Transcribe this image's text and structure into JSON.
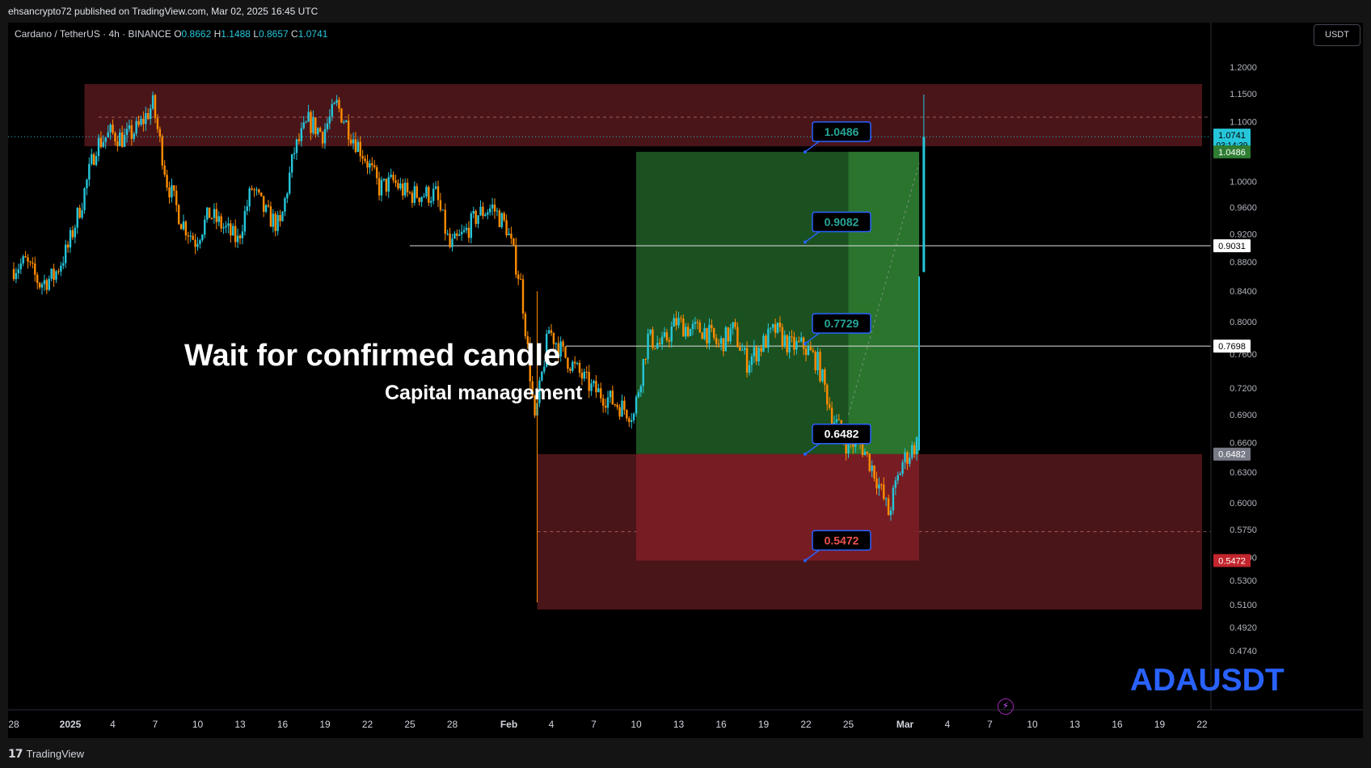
{
  "header": {
    "published_line": "ehsancrypto72 published on TradingView.com, Mar 02, 2025 16:45 UTC"
  },
  "symbol": {
    "title": "Cardano / TetherUS · 4h · BINANCE",
    "o_label": "O",
    "o_value": "0.8662",
    "h_label": "H",
    "h_value": "1.1488",
    "l_label": "L",
    "l_value": "0.8657",
    "c_label": "C",
    "c_value": "1.0741"
  },
  "currency_button": "USDT",
  "annotations": {
    "main": "Wait for confirmed candle",
    "sub": "Capital management",
    "ticker": "ADAUSDT"
  },
  "footer": {
    "brand": "TradingView"
  },
  "colors": {
    "up": "#26c6da",
    "down": "#ff8c00",
    "profit_zone": "#1e5a24",
    "loss_zone": "#7a1c24",
    "supply_zone": "#4a1518",
    "accent": "#2962ff"
  },
  "chart_data": {
    "type": "candlestick",
    "symbol": "ADAUSDT",
    "timeframe": "4h",
    "y_axis": {
      "scale": "log",
      "ticks": [
        "1.2000",
        "1.1500",
        "1.1000",
        "1.0000",
        "0.9600",
        "0.9200",
        "0.8800",
        "0.8400",
        "0.8000",
        "0.7600",
        "0.7200",
        "0.6900",
        "0.6600",
        "0.6300",
        "0.6000",
        "0.5750",
        "0.5500",
        "0.5300",
        "0.5100",
        "0.4920",
        "0.4740"
      ],
      "range": [
        0.462,
        1.25
      ]
    },
    "x_axis": {
      "ticks": [
        "28",
        "2025",
        "4",
        "7",
        "10",
        "13",
        "16",
        "19",
        "22",
        "25",
        "28",
        "Feb",
        "4",
        "7",
        "10",
        "13",
        "16",
        "19",
        "22",
        "25",
        "Mar",
        "4",
        "7",
        "10",
        "13",
        "16",
        "19",
        "22"
      ]
    },
    "price_labels": [
      {
        "text": "1.0741",
        "sub": "03:14:39",
        "value": 1.0741,
        "bg": "#26c6da",
        "fg": "#000000"
      },
      {
        "text": "1.0486",
        "value": 1.0486,
        "bg": "#2e7d32",
        "fg": "#ffffff"
      },
      {
        "text": "0.9031",
        "value": 0.9031,
        "bg": "#ffffff",
        "fg": "#000000"
      },
      {
        "text": "0.7698",
        "value": 0.7698,
        "bg": "#ffffff",
        "fg": "#000000"
      },
      {
        "text": "0.6482",
        "value": 0.6482,
        "bg": "#787b86",
        "fg": "#ffffff"
      },
      {
        "text": "0.5472",
        "value": 0.5472,
        "bg": "#c2252d",
        "fg": "#ffffff"
      }
    ],
    "horizontal_lines": [
      {
        "value": 0.9031,
        "from": "Jan 25",
        "style": "solid"
      },
      {
        "value": 0.7698,
        "from": "Feb 5",
        "style": "solid"
      }
    ],
    "zones": [
      {
        "name": "supply",
        "top": 1.168,
        "bottom": 1.058,
        "from": "Jan 2",
        "to": "Mar 22"
      },
      {
        "name": "demand",
        "top": 0.6482,
        "bottom": 0.5062,
        "from": "Feb 3",
        "to": "Mar 22"
      }
    ],
    "position": {
      "entry": 0.6482,
      "target": 1.0486,
      "stop": 0.5472,
      "from": "Feb 10",
      "to": "Mar 2"
    },
    "callouts": [
      {
        "text": "1.0486",
        "value": 1.0486,
        "color": "#26a69a"
      },
      {
        "text": "0.9082",
        "value": 0.9082,
        "color": "#26a69a"
      },
      {
        "text": "0.7729",
        "value": 0.7729,
        "color": "#26a69a"
      },
      {
        "text": "0.6482",
        "value": 0.6482,
        "color": "#ffffff"
      },
      {
        "text": "0.5472",
        "value": 0.5472,
        "color": "#ef5350"
      }
    ],
    "price_path": [
      [
        "Dec 28",
        0.87
      ],
      [
        "Dec 29",
        0.88
      ],
      [
        "Dec 30",
        0.85
      ],
      [
        "Dec 31",
        0.86
      ],
      [
        "Jan 1",
        0.9
      ],
      [
        "Jan 2",
        0.97
      ],
      [
        "Jan 3",
        1.06
      ],
      [
        "Jan 4",
        1.08
      ],
      [
        "Jan 5",
        1.07
      ],
      [
        "Jan 6",
        1.09
      ],
      [
        "Jan 7",
        1.13
      ],
      [
        "Jan 8",
        1.0
      ],
      [
        "Jan 9",
        0.94
      ],
      [
        "Jan 10",
        0.91
      ],
      [
        "Jan 11",
        0.95
      ],
      [
        "Jan 12",
        0.93
      ],
      [
        "Jan 13",
        0.91
      ],
      [
        "Jan 14",
        0.99
      ],
      [
        "Jan 15",
        0.95
      ],
      [
        "Jan 16",
        0.93
      ],
      [
        "Jan 17",
        1.05
      ],
      [
        "Jan 18",
        1.1
      ],
      [
        "Jan 19",
        1.08
      ],
      [
        "Jan 20",
        1.13
      ],
      [
        "Jan 21",
        1.08
      ],
      [
        "Jan 22",
        1.04
      ],
      [
        "Jan 23",
        0.99
      ],
      [
        "Jan 24",
        1.0
      ],
      [
        "Jan 25",
        0.98
      ],
      [
        "Jan 26",
        0.98
      ],
      [
        "Jan 27",
        0.98
      ],
      [
        "Jan 28",
        0.9
      ],
      [
        "Jan 29",
        0.92
      ],
      [
        "Jan 30",
        0.95
      ],
      [
        "Jan 31",
        0.96
      ],
      [
        "Feb 1",
        0.93
      ],
      [
        "Feb 2",
        0.85
      ],
      [
        "Feb 3",
        0.68
      ],
      [
        "Feb 4",
        0.79
      ],
      [
        "Feb 5",
        0.76
      ],
      [
        "Feb 6",
        0.74
      ],
      [
        "Feb 7",
        0.72
      ],
      [
        "Feb 8",
        0.71
      ],
      [
        "Feb 9",
        0.7
      ],
      [
        "Feb 10",
        0.69
      ],
      [
        "Feb 11",
        0.78
      ],
      [
        "Feb 12",
        0.77
      ],
      [
        "Feb 13",
        0.8
      ],
      [
        "Feb 14",
        0.79
      ],
      [
        "Feb 15",
        0.79
      ],
      [
        "Feb 16",
        0.77
      ],
      [
        "Feb 17",
        0.79
      ],
      [
        "Feb 18",
        0.75
      ],
      [
        "Feb 19",
        0.77
      ],
      [
        "Feb 20",
        0.79
      ],
      [
        "Feb 21",
        0.77
      ],
      [
        "Feb 22",
        0.77
      ],
      [
        "Feb 23",
        0.75
      ],
      [
        "Feb 24",
        0.69
      ],
      [
        "Feb 25",
        0.66
      ],
      [
        "Feb 26",
        0.66
      ],
      [
        "Feb 27",
        0.63
      ],
      [
        "Feb 28",
        0.59
      ],
      [
        "Mar 1",
        0.64
      ],
      [
        "Mar 2",
        0.66
      ],
      [
        "Mar 2 12:00",
        1.0741
      ]
    ]
  }
}
